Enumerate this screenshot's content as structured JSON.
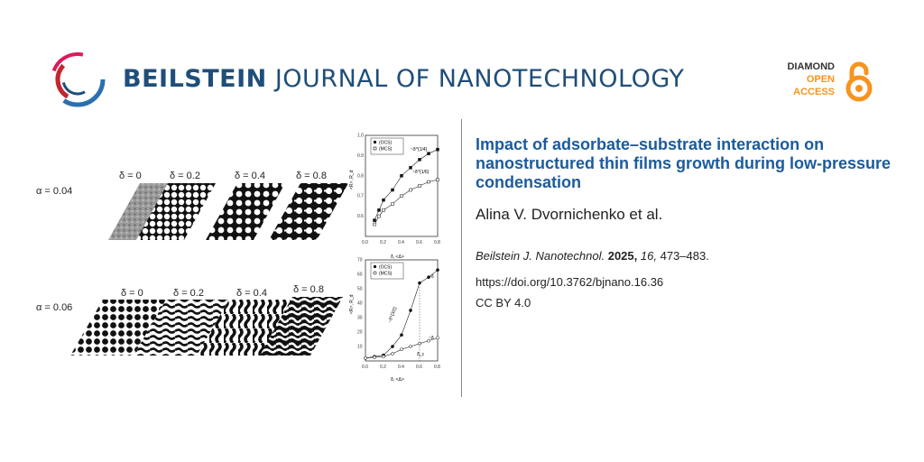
{
  "header": {
    "journal_bold": "BEILSTEIN",
    "journal_rest": "JOURNAL OF NANOTECHNOLOGY",
    "oa_line1": "DIAMOND",
    "oa_line2": "OPEN",
    "oa_line3": "ACCESS",
    "brand_color": "#1f4e79",
    "oa_color": "#f7931e"
  },
  "article": {
    "title": "Impact of adsorbate–substrate interaction on nanostructured thin films growth during low-pressure condensation",
    "authors": "Alina V. Dvornichenko et al.",
    "journal_abbrev": "Beilstein J. Nanotechnol.",
    "year": "2025,",
    "volume": "16,",
    "pages": "473–483.",
    "doi": "https://doi.org/10.3762/bjnano.16.36",
    "license": "CC BY 4.0"
  },
  "figure": {
    "row1_label": "α = 0.04",
    "row2_label": "α = 0.06",
    "delta_labels": [
      "δ = 0",
      "δ = 0.2",
      "δ = 0.4",
      "δ = 0.8"
    ],
    "plot1_legend": [
      "(OCS)",
      "(MCS)"
    ],
    "plot2_legend": [
      "(OCS)",
      "(MCS)"
    ],
    "plot1_xlabel": "δ, <Δ>",
    "plot2_xlabel": "δ, <Δ>",
    "plot1_ylabel": "<R>, R_d",
    "plot2_ylabel": "<R>, R_d",
    "plot1_annot1": "~δ^{1/4}",
    "plot1_annot2": "~δ^{1/6}",
    "plot2_annot1": "~δ^{3/2}",
    "plot2_annot2": "~δ",
    "plot2_annot3": "~δ",
    "plot2_annot4": "δ_c"
  },
  "chart_data": [
    {
      "type": "scatter",
      "xlim": [
        0.0,
        0.8
      ],
      "ylim": [
        0.5,
        1.0
      ],
      "x_ticks": [
        0.0,
        0.2,
        0.4,
        0.6,
        0.8
      ],
      "y_ticks": [
        0.6,
        0.7,
        0.8,
        0.9,
        1.0
      ],
      "x_tick_labels": [
        "0.0",
        "0.2",
        "0.4",
        "0.6",
        "0.8"
      ],
      "y_tick_labels": [
        "0.6",
        "0.7",
        "0.8",
        "0.9",
        "1.0"
      ],
      "series": [
        {
          "name": "(OCS)",
          "x": [
            0.1,
            0.15,
            0.2,
            0.3,
            0.4,
            0.5,
            0.6,
            0.7,
            0.8
          ],
          "y": [
            0.58,
            0.63,
            0.68,
            0.73,
            0.8,
            0.84,
            0.88,
            0.91,
            0.93
          ]
        },
        {
          "name": "(MCS)",
          "x": [
            0.1,
            0.15,
            0.2,
            0.3,
            0.4,
            0.5,
            0.6,
            0.7,
            0.8
          ],
          "y": [
            0.56,
            0.6,
            0.63,
            0.66,
            0.7,
            0.73,
            0.75,
            0.77,
            0.78
          ]
        }
      ],
      "legend": "top-left"
    },
    {
      "type": "scatter",
      "xlim": [
        0.0,
        0.8
      ],
      "ylim": [
        0,
        70
      ],
      "x_ticks": [
        0.0,
        0.2,
        0.4,
        0.6,
        0.8
      ],
      "y_ticks": [
        0,
        10,
        20,
        30,
        40,
        50,
        60,
        70
      ],
      "x_tick_labels": [
        "0.0",
        "0.2",
        "0.4",
        "0.6",
        "0.8"
      ],
      "y_tick_labels": [
        "",
        "10",
        "20",
        "30",
        "40",
        "50",
        "60",
        "70"
      ],
      "series": [
        {
          "name": "(OCS)",
          "x": [
            0.0,
            0.1,
            0.2,
            0.3,
            0.4,
            0.5,
            0.6,
            0.7,
            0.8
          ],
          "y": [
            2,
            3,
            4,
            10,
            18,
            35,
            54,
            58,
            63
          ]
        },
        {
          "name": "(MCS)",
          "x": [
            0.0,
            0.1,
            0.2,
            0.3,
            0.4,
            0.5,
            0.6,
            0.7,
            0.8
          ],
          "y": [
            2,
            2.5,
            3,
            5,
            8,
            10,
            12,
            14,
            16
          ]
        }
      ],
      "legend": "top-left"
    }
  ]
}
